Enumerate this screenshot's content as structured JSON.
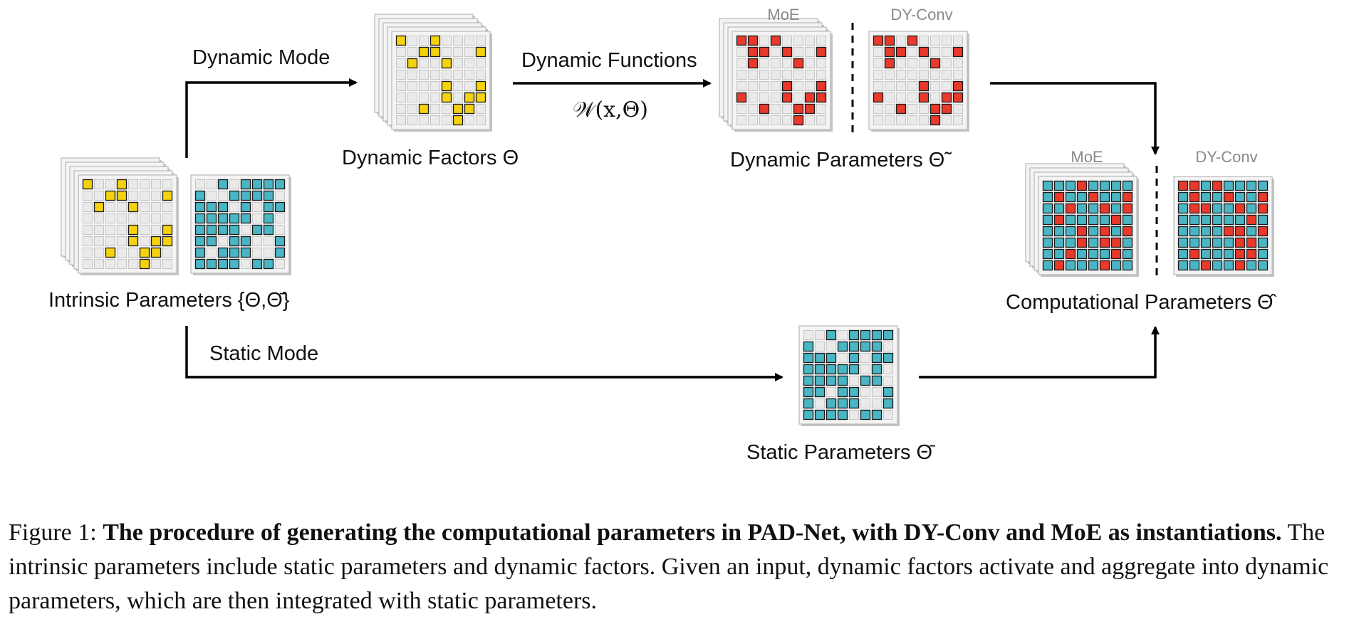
{
  "labels": {
    "dynamic_mode": "Dynamic Mode",
    "static_mode": "Static Mode",
    "dynamic_functions": "Dynamic Functions",
    "dynamic_functions_formula": "𝒲(x,Θ)",
    "dynamic_factors": "Dynamic Factors Θ",
    "dynamic_parameters": "Dynamic Parameters Θ̃",
    "intrinsic_parameters": "Intrinsic Parameters {Θ,Θ̄}",
    "static_parameters": "Static Parameters Θ̄",
    "computational_parameters": "Computational Parameters Θ̂",
    "moe_top": "MoE",
    "dyconv_top": "DY-Conv",
    "moe_right": "MoE",
    "dyconv_right": "DY-Conv"
  },
  "colors": {
    "dynamic_factor": "#f5d20e",
    "static_param": "#4ab5c4",
    "dynamic_param": "#e8392b",
    "empty_cell": "#eaeaea",
    "cell_stroke": "#1a1a1a",
    "arrow": "#000000"
  },
  "grids": {
    "dynamic_factors": [
      "10010000",
      "00110001",
      "01001000",
      "00000000",
      "00001001",
      "00001011",
      "00100110",
      "00000100"
    ],
    "dynamic_params_moe": [
      "11010000",
      "01101001",
      "01000100",
      "00000000",
      "00001001",
      "10001011",
      "00100110",
      "00000100"
    ],
    "dynamic_params_dyconv": [
      "11010000",
      "01101001",
      "01000100",
      "00000000",
      "00001001",
      "10001011",
      "00100110",
      "00000100"
    ],
    "static_params": [
      "00101111",
      "10011110",
      "11101011",
      "11111010",
      "11110110",
      "11011001",
      "10111001",
      "11110110"
    ],
    "computational_moe": [
      "11121111",
      "12112112",
      "11211212",
      "12111121",
      "11121212",
      "11121221",
      "11211121",
      "12111211"
    ],
    "computational_dyconv": [
      "22121111",
      "12112112",
      "12211212",
      "11111121",
      "11112212",
      "11111221",
      "12111221",
      "11211211"
    ]
  },
  "caption": {
    "figure_label": "Figure 1:",
    "bold_text": "The procedure of generating the computational parameters in PAD-Net, with DY-Conv and MoE as instantiations.",
    "text": "The intrinsic parameters include static parameters and dynamic factors. Given an input, dynamic factors activate and aggregate into dynamic parameters, which are then integrated with static parameters."
  }
}
